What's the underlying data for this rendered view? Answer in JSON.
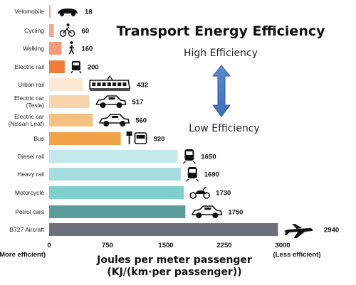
{
  "chart_data": {
    "type": "bar",
    "orientation": "horizontal",
    "title": "Transport Energy Efficiency",
    "annotations": {
      "high": "High Efficiency",
      "low": "Low Efficiency"
    },
    "xlabel_line1": "Joules per meter passenger",
    "xlabel_line2": "(KJ/(km·per passenger))",
    "xlim": [
      0,
      3000
    ],
    "xticks": [
      0,
      750,
      1500,
      2250,
      3000
    ],
    "xtick_labels": [
      "0",
      "750",
      "1500",
      "2250",
      "3000"
    ],
    "xtick_notes": {
      "left": "(More efficient)",
      "right": "(Less efficient)"
    },
    "grid": false,
    "categories": [
      {
        "label": [
          "Velomobile"
        ],
        "value": 18,
        "color": "#f2a58a",
        "icon": "velomobile-icon"
      },
      {
        "label": [
          "Cycling"
        ],
        "value": 60,
        "color": "#f4a68c",
        "icon": "bicycle-icon"
      },
      {
        "label": [
          "Walking"
        ],
        "value": 160,
        "color": "#f39b7a",
        "icon": "pedestrian-icon"
      },
      {
        "label": [
          "Electric rail"
        ],
        "value": 200,
        "color": "#f07c3c",
        "icon": "rail-icon"
      },
      {
        "label": [
          "Urban rail"
        ],
        "value": 432,
        "color": "#fbe9d6",
        "icon": "tram-icon"
      },
      {
        "label": [
          "Electric car",
          "(Tesla)"
        ],
        "value": 517,
        "color": "#f8d4ad",
        "icon": "car-icon"
      },
      {
        "label": [
          "Electric car",
          "(Nissan Leaf)"
        ],
        "value": 560,
        "color": "#f5c183",
        "icon": "car-icon"
      },
      {
        "label": [
          "Bus"
        ],
        "value": 920,
        "color": "#efa448",
        "icon": "bus-stop-icon"
      },
      {
        "label": [
          "Diesel rail"
        ],
        "value": 1650,
        "color": "#c3e7eb",
        "icon": "train-icon"
      },
      {
        "label": [
          "Heavy rail"
        ],
        "value": 1690,
        "color": "#a5dcdf",
        "icon": "train-icon"
      },
      {
        "label": [
          "Motorcycle"
        ],
        "value": 1730,
        "color": "#7fcfcc",
        "icon": "motorcycle-icon"
      },
      {
        "label": [
          "Petrol cars"
        ],
        "value": 1750,
        "color": "#5c9f9a",
        "icon": "car-icon"
      },
      {
        "label": [
          "B727 Aircraft"
        ],
        "value": 2940,
        "color": "#6d6f7c",
        "icon": "airplane-icon"
      }
    ]
  }
}
